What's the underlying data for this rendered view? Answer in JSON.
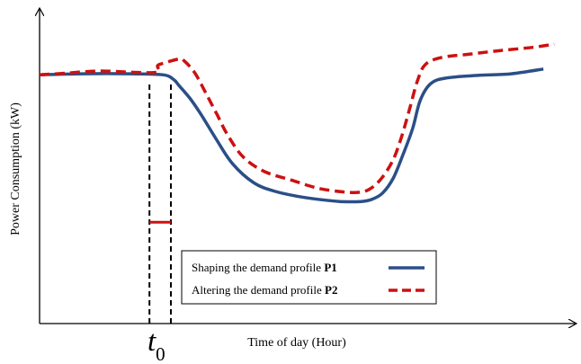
{
  "chart_data": {
    "type": "line",
    "xlabel": "Time of day (Hour)",
    "ylabel": "Power Consumption (kW)",
    "t0_label": "t",
    "t0_subscript": "0",
    "xlim": [
      0,
      100
    ],
    "ylim": [
      0,
      100
    ],
    "grid": false,
    "legend_position": "bottom-center",
    "series": [
      {
        "name_text": "Shaping the demand profile ",
        "name_bold": "P1",
        "color": "#2b4f86",
        "style": "solid",
        "points": [
          [
            0,
            79.1
          ],
          [
            8,
            79.4
          ],
          [
            17,
            79.4
          ],
          [
            23,
            79.1
          ],
          [
            25,
            77.6
          ],
          [
            26,
            75.7
          ],
          [
            28,
            71.7
          ],
          [
            30,
            66.8
          ],
          [
            33,
            58.5
          ],
          [
            36,
            50.8
          ],
          [
            40,
            44.7
          ],
          [
            44,
            42.0
          ],
          [
            48,
            40.5
          ],
          [
            52,
            39.5
          ],
          [
            56,
            38.8
          ],
          [
            60,
            38.8
          ],
          [
            62,
            39.5
          ],
          [
            64,
            41.5
          ],
          [
            66,
            46.3
          ],
          [
            67.8,
            53.7
          ],
          [
            69.6,
            62.0
          ],
          [
            71,
            70.9
          ],
          [
            73,
            76.3
          ],
          [
            76,
            78.1
          ],
          [
            82,
            78.9
          ],
          [
            88,
            79.4
          ],
          [
            94,
            80.9
          ]
        ]
      },
      {
        "name_text": "Altering the demand profile ",
        "name_bold": "P2",
        "color": "#cc1111",
        "style": "dashed",
        "points": [
          [
            0,
            79.1
          ],
          [
            5,
            79.6
          ],
          [
            11,
            80.3
          ],
          [
            17,
            79.9
          ],
          [
            22,
            79.9
          ],
          [
            22,
            81.9
          ],
          [
            23,
            82.7
          ],
          [
            26,
            84.1
          ],
          [
            27,
            83.5
          ],
          [
            29,
            79.6
          ],
          [
            31,
            73.3
          ],
          [
            33,
            66.8
          ],
          [
            35,
            60.2
          ],
          [
            38,
            52.9
          ],
          [
            42,
            48.3
          ],
          [
            47,
            45.6
          ],
          [
            52,
            43.0
          ],
          [
            57,
            41.8
          ],
          [
            60,
            41.8
          ],
          [
            62,
            43.2
          ],
          [
            64,
            46.6
          ],
          [
            66,
            52.2
          ],
          [
            67.5,
            59.2
          ],
          [
            69,
            68.0
          ],
          [
            70.5,
            77.2
          ],
          [
            72,
            82.4
          ],
          [
            75,
            84.6
          ],
          [
            80,
            85.6
          ],
          [
            86,
            86.8
          ],
          [
            92,
            87.8
          ],
          [
            96,
            88.8
          ]
        ]
      }
    ],
    "markers": [
      {
        "name": "t0-start",
        "x": 20.5,
        "style": "dashed",
        "color": "#000000"
      },
      {
        "name": "t0-end",
        "x": 24.5,
        "style": "dashed",
        "color": "#000000"
      }
    ],
    "interval_bar": {
      "x_start": 20.5,
      "x_end": 24.5,
      "y": 32.2,
      "color": "#cc1111"
    }
  }
}
